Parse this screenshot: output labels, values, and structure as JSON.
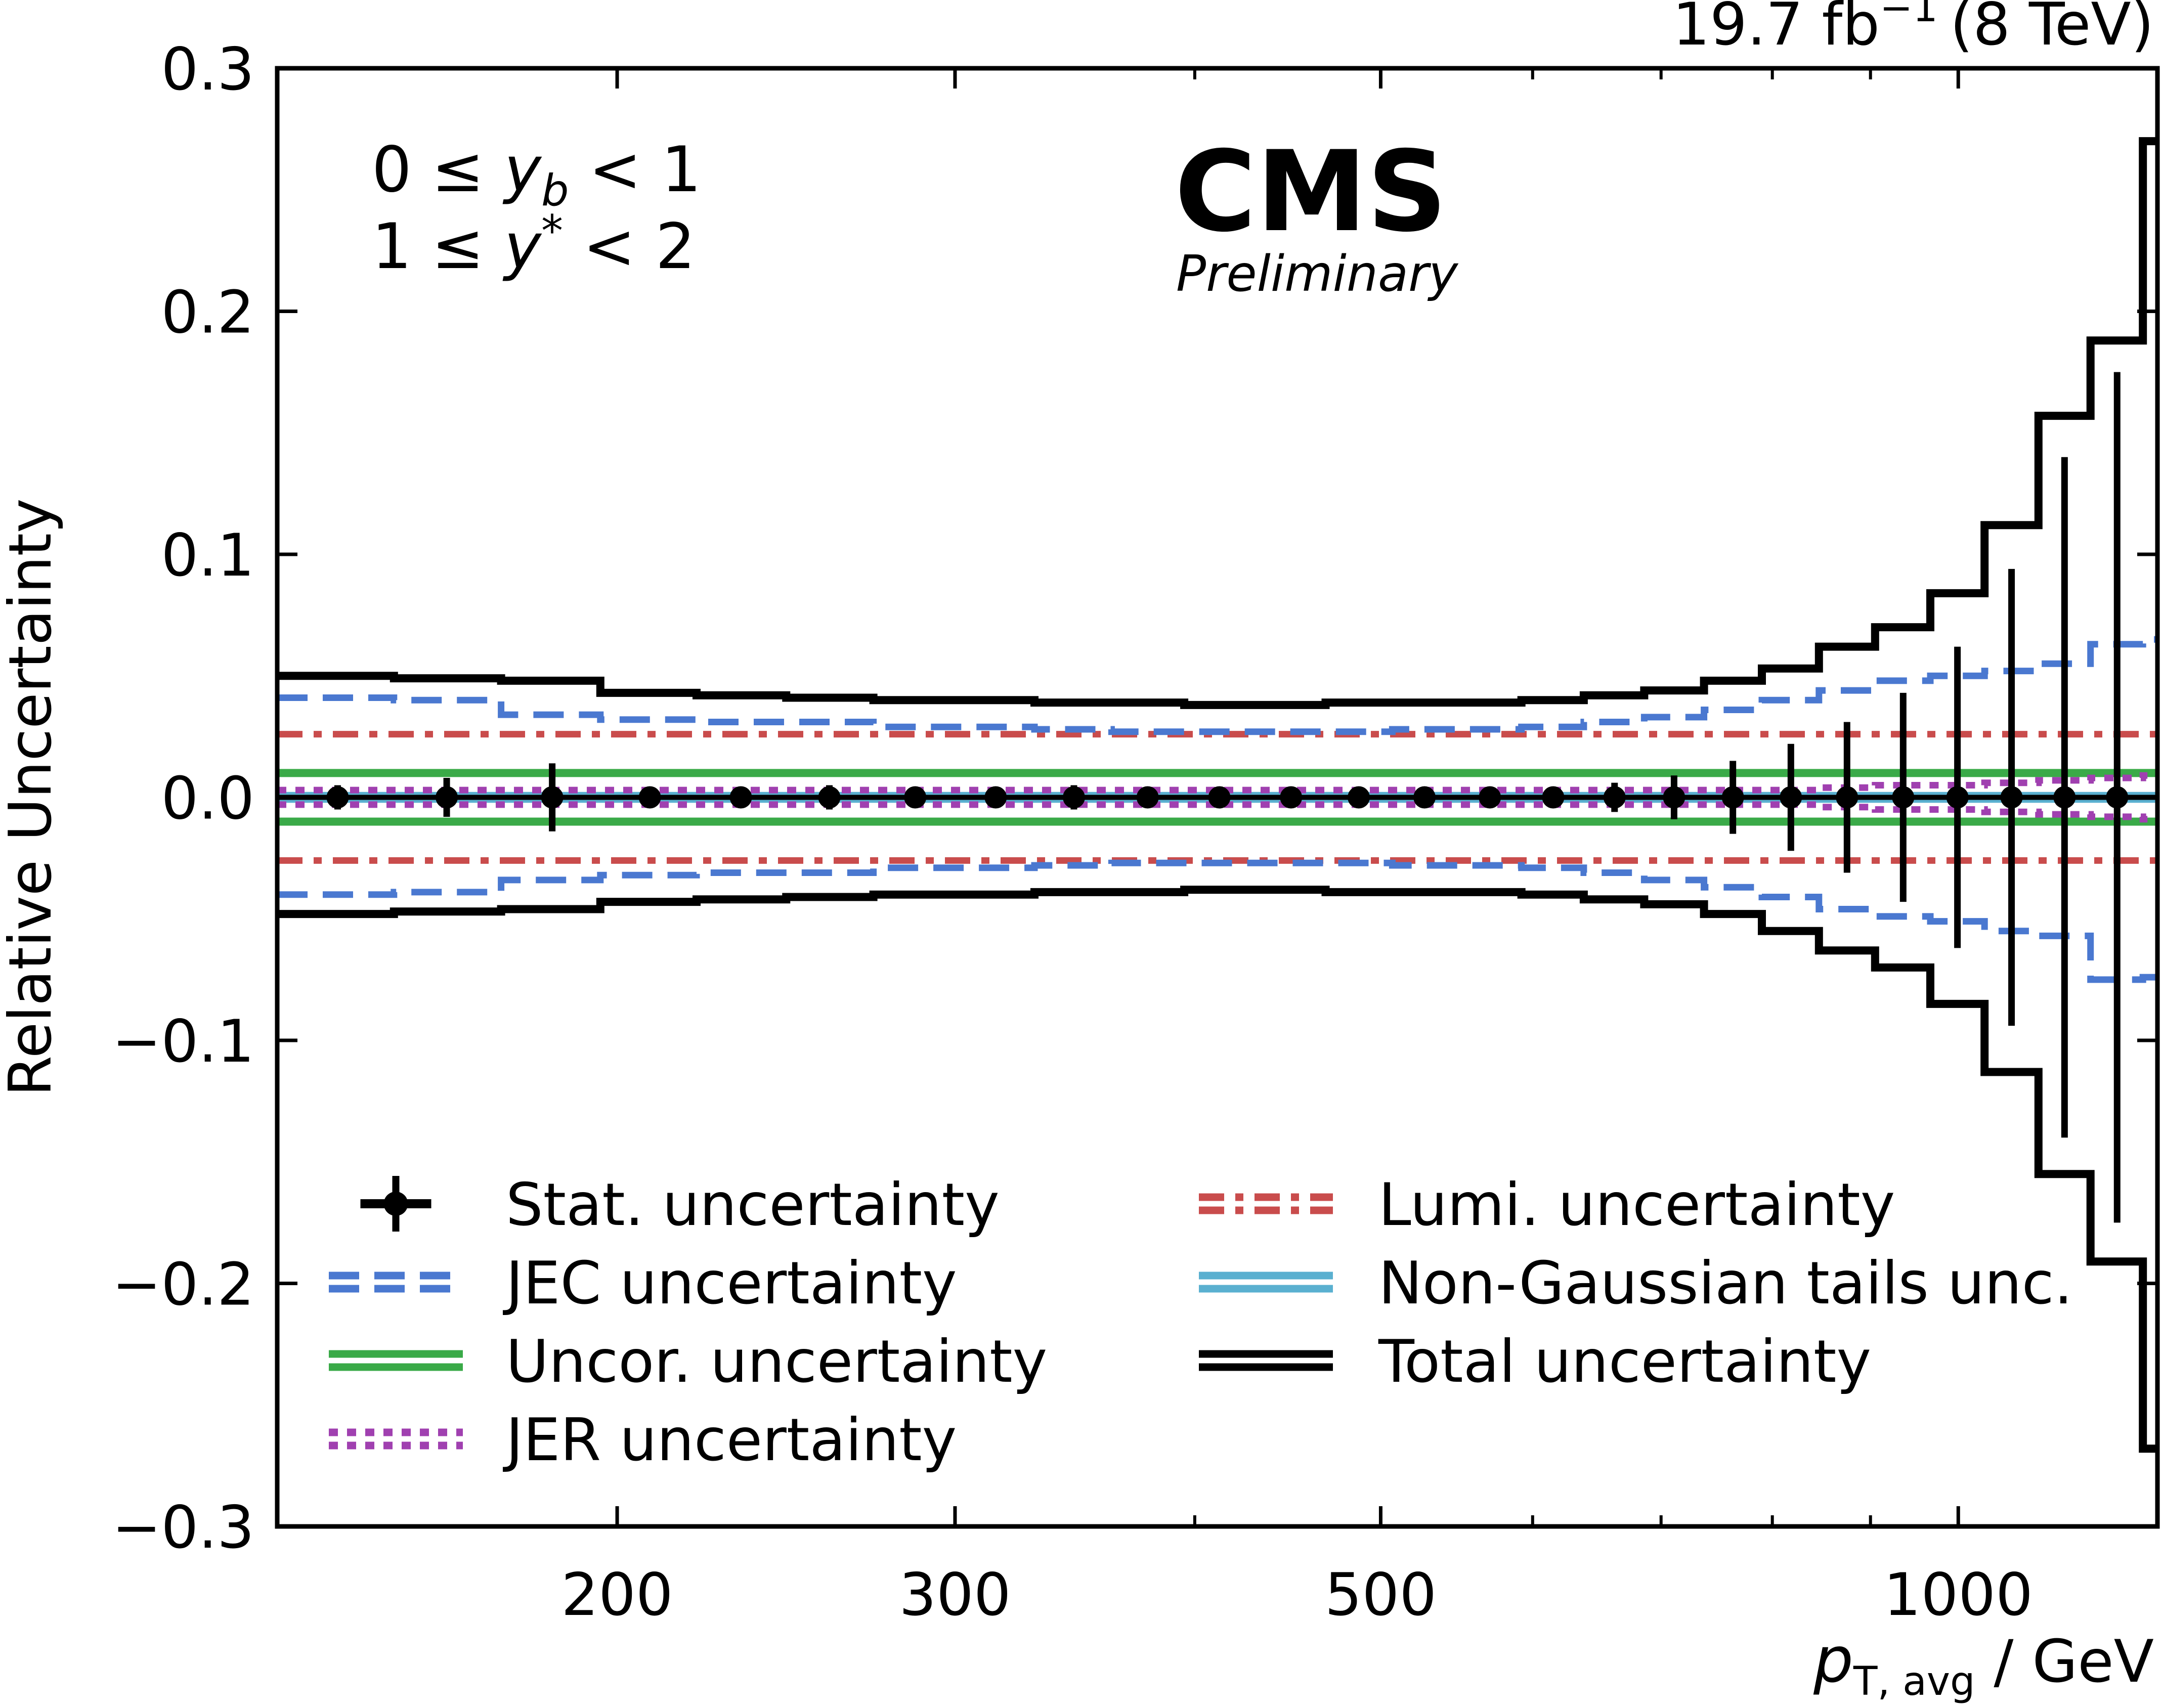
{
  "chart_data": {
    "type": "line",
    "experiment": "CMS",
    "status": "Preliminary",
    "lumi": "19.7 fb",
    "lumi_sup": "−1",
    "energy": "(8 TeV)",
    "region": {
      "line1_pre": "0 ≤ ",
      "line1_var": "y",
      "line1_sub": "b",
      "line1_post": " < 1",
      "line2_pre": "1 ≤ ",
      "line2_var": "y",
      "line2_sup": "*",
      "line2_post": " < 2"
    },
    "xlabel": {
      "var": "p",
      "sub": "T, avg",
      "unit": " / GeV"
    },
    "ylabel": "Relative Uncertainty",
    "xscale": "log",
    "xlim": [
      133,
      1270
    ],
    "ylim": [
      -0.3,
      0.3
    ],
    "x_major_ticks": [
      {
        "value": 200,
        "label": "200"
      },
      {
        "value": 300,
        "label": "300"
      },
      {
        "value": 500,
        "label": "500"
      },
      {
        "value": 1000,
        "label": "1000"
      }
    ],
    "x_minor_ticks": [
      400,
      600,
      700,
      800,
      900
    ],
    "y_ticks": [
      {
        "value": 0.3,
        "label": "0.3"
      },
      {
        "value": 0.2,
        "label": "0.2"
      },
      {
        "value": 0.1,
        "label": "0.1"
      },
      {
        "value": 0.0,
        "label": "0.0"
      },
      {
        "value": -0.1,
        "label": "−0.1"
      },
      {
        "value": -0.2,
        "label": "−0.2"
      },
      {
        "value": -0.3,
        "label": "−0.3"
      }
    ],
    "bin_edges": [
      133,
      153,
      174,
      196,
      220,
      245,
      272,
      300,
      330,
      362,
      395,
      430,
      468,
      507,
      548,
      592,
      638,
      686,
      737,
      790,
      846,
      905,
      967,
      1032,
      1101,
      1172,
      1248,
      1327
    ],
    "stat_points": {
      "x": [
        143,
        163,
        185,
        208,
        232,
        258,
        286,
        315,
        346,
        378,
        412,
        449,
        487,
        527,
        570,
        615,
        662,
        711,
        763,
        818,
        875,
        936,
        999,
        1066,
        1136,
        1210
      ],
      "err": [
        0.005,
        0.008,
        0.014,
        0.002,
        0.003,
        0.005,
        0.002,
        0.003,
        0.005,
        0.002,
        0.002,
        0.001,
        0.002,
        0.002,
        0.003,
        0.004,
        0.006,
        0.009,
        0.015,
        0.022,
        0.031,
        0.043,
        0.062,
        0.094,
        0.14,
        0.175
      ]
    },
    "series": [
      {
        "name": "Stat. uncertainty",
        "style": "errorbar",
        "color": "#000000"
      },
      {
        "name": "JEC uncertainty",
        "style": "dashed",
        "color": "#4a78d0",
        "upper": [
          0.041,
          0.04,
          0.034,
          0.032,
          0.031,
          0.031,
          0.029,
          0.029,
          0.028,
          0.027,
          0.027,
          0.027,
          0.027,
          0.028,
          0.028,
          0.029,
          0.031,
          0.033,
          0.036,
          0.04,
          0.044,
          0.048,
          0.05,
          0.052,
          0.055,
          0.063,
          0.065
        ],
        "lower": [
          -0.04,
          -0.039,
          -0.034,
          -0.032,
          -0.031,
          -0.031,
          -0.029,
          -0.029,
          -0.028,
          -0.027,
          -0.027,
          -0.027,
          -0.027,
          -0.028,
          -0.028,
          -0.029,
          -0.031,
          -0.034,
          -0.037,
          -0.041,
          -0.046,
          -0.049,
          -0.051,
          -0.055,
          -0.057,
          -0.075,
          -0.074
        ]
      },
      {
        "name": "Uncor. uncertainty",
        "style": "solid",
        "color": "#3aaa48",
        "upper": 0.01,
        "lower": -0.01
      },
      {
        "name": "JER uncertainty",
        "style": "dotted",
        "color": "#a040b0",
        "upper": [
          0.003,
          0.003,
          0.003,
          0.003,
          0.003,
          0.003,
          0.003,
          0.003,
          0.003,
          0.003,
          0.003,
          0.003,
          0.003,
          0.003,
          0.003,
          0.003,
          0.003,
          0.003,
          0.003,
          0.003,
          0.004,
          0.005,
          0.005,
          0.006,
          0.007,
          0.008,
          0.009
        ],
        "lower": [
          -0.003,
          -0.003,
          -0.003,
          -0.003,
          -0.003,
          -0.003,
          -0.003,
          -0.003,
          -0.003,
          -0.003,
          -0.003,
          -0.003,
          -0.003,
          -0.003,
          -0.003,
          -0.003,
          -0.003,
          -0.003,
          -0.003,
          -0.003,
          -0.004,
          -0.005,
          -0.005,
          -0.006,
          -0.007,
          -0.008,
          -0.009
        ]
      },
      {
        "name": "Lumi. uncertainty",
        "style": "dashdot",
        "color": "#c94c4c",
        "upper": 0.026,
        "lower": -0.026
      },
      {
        "name": "Non-Gaussian tails unc.",
        "style": "solid",
        "color": "#5ab0d0",
        "upper": 0.001,
        "lower": -0.001
      },
      {
        "name": "Total uncertainty",
        "style": "solid",
        "color": "#000000",
        "upper": [
          0.05,
          0.049,
          0.048,
          0.043,
          0.042,
          0.041,
          0.04,
          0.04,
          0.039,
          0.039,
          0.038,
          0.038,
          0.039,
          0.039,
          0.039,
          0.04,
          0.042,
          0.044,
          0.048,
          0.053,
          0.062,
          0.07,
          0.084,
          0.112,
          0.157,
          0.188,
          0.27
        ],
        "lower": [
          -0.048,
          -0.047,
          -0.046,
          -0.043,
          -0.042,
          -0.041,
          -0.04,
          -0.04,
          -0.039,
          -0.039,
          -0.038,
          -0.038,
          -0.039,
          -0.039,
          -0.039,
          -0.04,
          -0.042,
          -0.044,
          -0.048,
          -0.055,
          -0.063,
          -0.07,
          -0.085,
          -0.113,
          -0.155,
          -0.191,
          -0.268
        ]
      }
    ],
    "legend": {
      "placement": "lower-center",
      "entries": [
        {
          "label": "Stat. uncertainty",
          "style": "errorbar",
          "color": "#000000"
        },
        {
          "label": "JEC uncertainty",
          "style": "dashed",
          "color": "#4a78d0"
        },
        {
          "label": "Uncor. uncertainty",
          "style": "solid",
          "color": "#3aaa48"
        },
        {
          "label": "JER uncertainty",
          "style": "dotted",
          "color": "#a040b0"
        },
        {
          "label": "Lumi. uncertainty",
          "style": "dashdot",
          "color": "#c94c4c"
        },
        {
          "label": "Non-Gaussian tails unc.",
          "style": "solid",
          "color": "#5ab0d0"
        },
        {
          "label": "Total uncertainty",
          "style": "solid",
          "color": "#000000"
        }
      ]
    },
    "grid": false
  }
}
